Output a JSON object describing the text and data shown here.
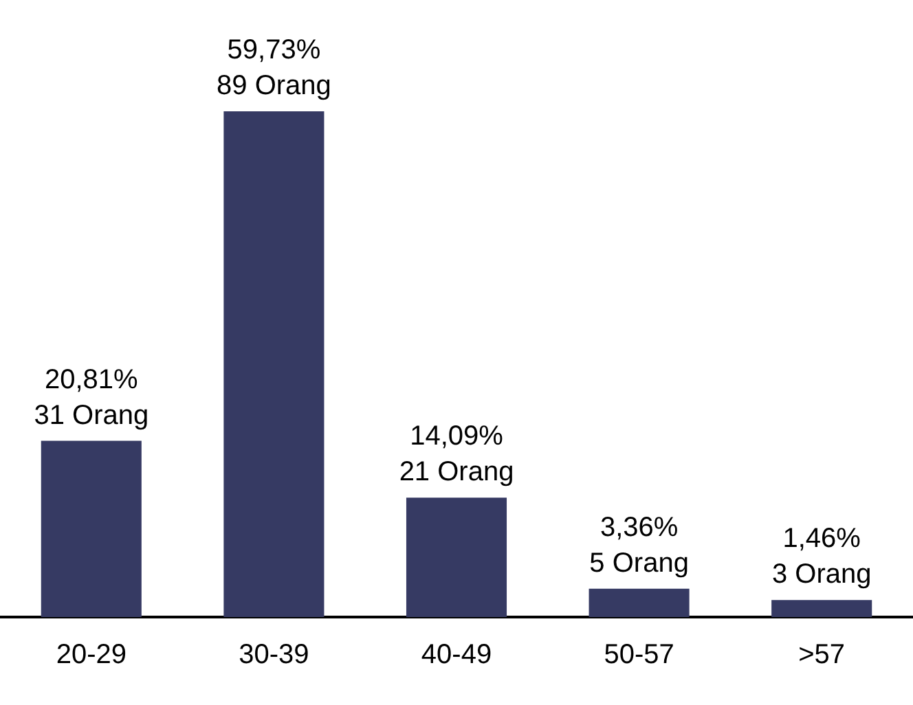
{
  "chart_data": {
    "type": "bar",
    "categories": [
      "20-29",
      "30-39",
      "40-49",
      "50-57",
      ">57"
    ],
    "values": [
      31,
      89,
      21,
      5,
      3
    ],
    "color": "#363a63",
    "value_labels": [
      "20,81%\n31 Orang",
      "59,73%\n89 Orang",
      "14,09%\n21 Orang",
      "3,36%\n5 Orang",
      "1,46%\n3 Orang"
    ],
    "grid": false,
    "legend": false,
    "tick_labels": "x"
  }
}
